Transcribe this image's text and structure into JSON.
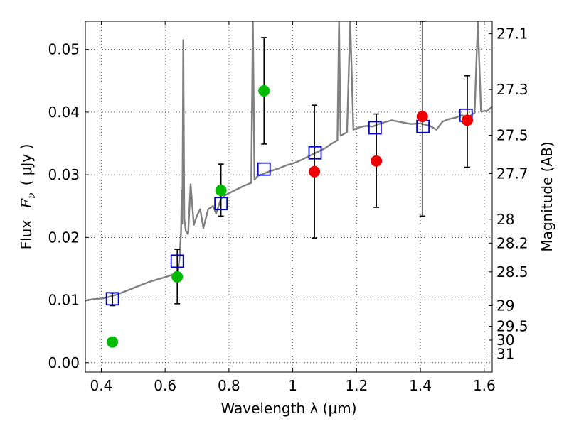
{
  "chart_data": {
    "type": "scatter",
    "title": "",
    "xlabel": "Wavelength  λ (μm)",
    "ylabel_parts": [
      "Flux",
      "F",
      "ν",
      "( μJy )"
    ],
    "y2label": "Magnitude (AB)",
    "xlim": [
      0.35,
      1.625
    ],
    "ylim": [
      -0.0015,
      0.0545
    ],
    "grid": true,
    "grid_style": "dotted",
    "x_ticks": [
      {
        "value": 0.4,
        "label": "0.4"
      },
      {
        "value": 0.6,
        "label": "0.6"
      },
      {
        "value": 0.8,
        "label": "0.8"
      },
      {
        "value": 1.0,
        "label": "1"
      },
      {
        "value": 1.2,
        "label": "1.2"
      },
      {
        "value": 1.4,
        "label": "1.4"
      },
      {
        "value": 1.6,
        "label": "1.6"
      }
    ],
    "y_ticks": [
      {
        "value": 0.0,
        "label": "0.00"
      },
      {
        "value": 0.01,
        "label": "0.01"
      },
      {
        "value": 0.02,
        "label": "0.02"
      },
      {
        "value": 0.03,
        "label": "0.03"
      },
      {
        "value": 0.04,
        "label": "0.04"
      },
      {
        "value": 0.05,
        "label": "0.05"
      }
    ],
    "y2_ticks": [
      {
        "label": "27.1",
        "flux": 0.0525
      },
      {
        "label": "27.3",
        "flux": 0.0436
      },
      {
        "label": "27.5",
        "flux": 0.0363
      },
      {
        "label": "27.7",
        "flux": 0.0302
      },
      {
        "label": "28",
        "flux": 0.0229
      },
      {
        "label": "28.2",
        "flux": 0.0191
      },
      {
        "label": "28.5",
        "flux": 0.0145
      },
      {
        "label": "29",
        "flux": 0.0091
      },
      {
        "label": "29.5",
        "flux": 0.0058
      },
      {
        "label": "30",
        "flux": 0.0036
      },
      {
        "label": "31",
        "flux": 0.0014
      }
    ],
    "model_spectrum": {
      "color": "#808080",
      "points": [
        [
          0.35,
          0.0099
        ],
        [
          0.37,
          0.0101
        ],
        [
          0.39,
          0.0102
        ],
        [
          0.41,
          0.0103
        ],
        [
          0.43,
          0.0106
        ],
        [
          0.45,
          0.0109
        ],
        [
          0.47,
          0.0113
        ],
        [
          0.49,
          0.0117
        ],
        [
          0.51,
          0.0121
        ],
        [
          0.53,
          0.0125
        ],
        [
          0.55,
          0.0129
        ],
        [
          0.57,
          0.0132
        ],
        [
          0.59,
          0.0135
        ],
        [
          0.61,
          0.0138
        ],
        [
          0.625,
          0.0141
        ],
        [
          0.64,
          0.0148
        ],
        [
          0.645,
          0.0165
        ],
        [
          0.65,
          0.021
        ],
        [
          0.652,
          0.0275
        ],
        [
          0.654,
          0.0222
        ],
        [
          0.657,
          0.0515
        ],
        [
          0.66,
          0.023
        ],
        [
          0.665,
          0.021
        ],
        [
          0.672,
          0.0205
        ],
        [
          0.68,
          0.0285
        ],
        [
          0.69,
          0.022
        ],
        [
          0.7,
          0.0235
        ],
        [
          0.71,
          0.0245
        ],
        [
          0.72,
          0.0215
        ],
        [
          0.735,
          0.0245
        ],
        [
          0.75,
          0.025
        ],
        [
          0.76,
          0.0238
        ],
        [
          0.775,
          0.0262
        ],
        [
          0.79,
          0.0268
        ],
        [
          0.81,
          0.0273
        ],
        [
          0.83,
          0.0278
        ],
        [
          0.85,
          0.0283
        ],
        [
          0.87,
          0.0287
        ],
        [
          0.875,
          0.0545
        ],
        [
          0.88,
          0.0292
        ],
        [
          0.89,
          0.0298
        ],
        [
          0.91,
          0.0302
        ],
        [
          0.93,
          0.0306
        ],
        [
          0.95,
          0.0309
        ],
        [
          0.98,
          0.0315
        ],
        [
          1.0,
          0.0318
        ],
        [
          1.02,
          0.0322
        ],
        [
          1.04,
          0.0327
        ],
        [
          1.06,
          0.0332
        ],
        [
          1.08,
          0.0337
        ],
        [
          1.1,
          0.0342
        ],
        [
          1.12,
          0.0349
        ],
        [
          1.14,
          0.0355
        ],
        [
          1.145,
          0.0545
        ],
        [
          1.15,
          0.0362
        ],
        [
          1.17,
          0.0368
        ],
        [
          1.18,
          0.0545
        ],
        [
          1.19,
          0.0372
        ],
        [
          1.21,
          0.0376
        ],
        [
          1.23,
          0.0378
        ],
        [
          1.25,
          0.0377
        ],
        [
          1.27,
          0.0381
        ],
        [
          1.29,
          0.0384
        ],
        [
          1.31,
          0.0387
        ],
        [
          1.33,
          0.0385
        ],
        [
          1.35,
          0.0383
        ],
        [
          1.37,
          0.0381
        ],
        [
          1.4,
          0.0382
        ],
        [
          1.43,
          0.0378
        ],
        [
          1.45,
          0.0372
        ],
        [
          1.47,
          0.0385
        ],
        [
          1.49,
          0.0389
        ],
        [
          1.51,
          0.0391
        ],
        [
          1.53,
          0.0395
        ],
        [
          1.55,
          0.0392
        ],
        [
          1.57,
          0.0399
        ],
        [
          1.58,
          0.0545
        ],
        [
          1.59,
          0.0401
        ],
        [
          1.61,
          0.0402
        ],
        [
          1.625,
          0.0409
        ]
      ]
    },
    "series": [
      {
        "marker": "open-square",
        "color": "#0000cc",
        "points": [
          {
            "x": 0.435,
            "y": 0.0102
          },
          {
            "x": 0.638,
            "y": 0.0162
          },
          {
            "x": 0.775,
            "y": 0.0254
          },
          {
            "x": 0.91,
            "y": 0.0309
          },
          {
            "x": 1.07,
            "y": 0.0335
          },
          {
            "x": 1.258,
            "y": 0.0375
          },
          {
            "x": 1.408,
            "y": 0.0377
          },
          {
            "x": 1.543,
            "y": 0.0395
          }
        ]
      },
      {
        "marker": "filled-circle",
        "color": "#00bb00",
        "points": [
          {
            "x": 0.435,
            "y": 0.0033,
            "err_lo": 0.0091,
            "err_hi": 0.0111
          },
          {
            "x": 0.638,
            "y": 0.0137,
            "err_lo": 0.0094,
            "err_hi": 0.0181
          },
          {
            "x": 0.775,
            "y": 0.0275,
            "err_lo": 0.0234,
            "err_hi": 0.0317
          },
          {
            "x": 0.91,
            "y": 0.0434,
            "err_lo": 0.0349,
            "err_hi": 0.0519
          }
        ]
      },
      {
        "marker": "filled-circle",
        "color": "#ee0000",
        "points": [
          {
            "x": 1.068,
            "y": 0.0305,
            "err_lo": 0.0199,
            "err_hi": 0.0411
          },
          {
            "x": 1.262,
            "y": 0.0322,
            "err_lo": 0.0248,
            "err_hi": 0.0397
          },
          {
            "x": 1.406,
            "y": 0.0393,
            "err_lo": 0.0234,
            "err_hi": 0.0545
          },
          {
            "x": 1.547,
            "y": 0.0387,
            "err_lo": 0.0312,
            "err_hi": 0.0458
          }
        ]
      }
    ]
  }
}
